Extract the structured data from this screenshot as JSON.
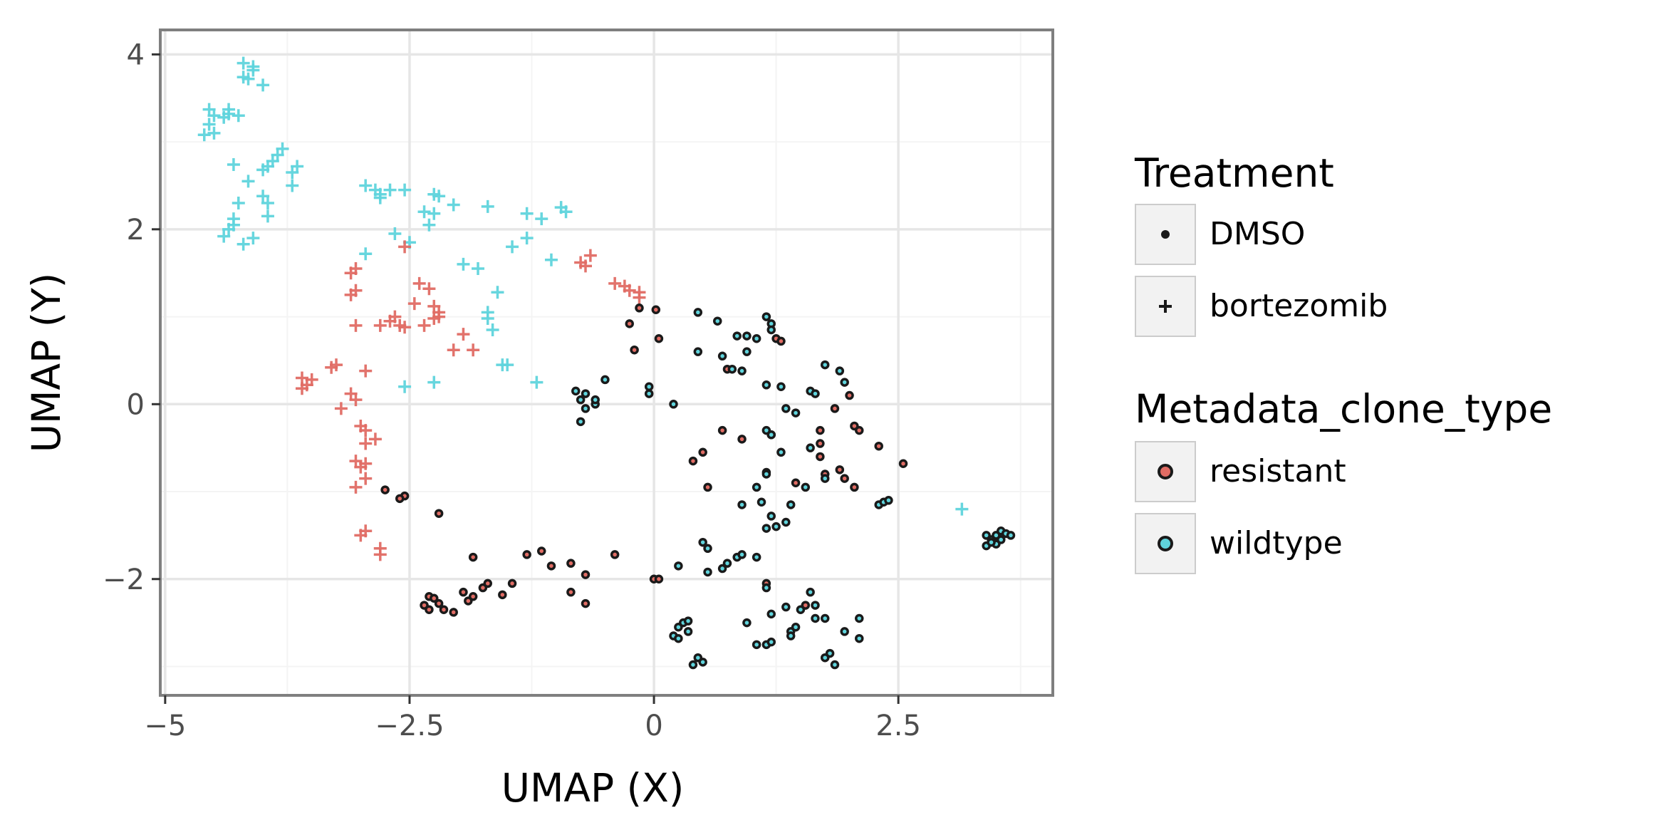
{
  "chart_data": {
    "type": "scatter",
    "xlabel": "UMAP (X)",
    "ylabel": "UMAP (Y)",
    "xlim": [
      -5.05,
      4.08
    ],
    "ylim": [
      -3.33,
      4.28
    ],
    "x_ticks": [
      {
        "value": -5,
        "label": "−5"
      },
      {
        "value": -2.5,
        "label": "−2.5"
      },
      {
        "value": 0,
        "label": "0"
      },
      {
        "value": 2.5,
        "label": "2.5"
      }
    ],
    "y_ticks": [
      {
        "value": -2,
        "label": "−2"
      },
      {
        "value": 0,
        "label": "0"
      },
      {
        "value": 2,
        "label": "2"
      },
      {
        "value": 4,
        "label": "4"
      }
    ],
    "grid": true,
    "colors": {
      "resistant": "#e06c64",
      "wildtype": "#5fd4dc",
      "outline": "#1a1a1a"
    },
    "legend": {
      "placement": "right",
      "groups": [
        {
          "title": "Treatment",
          "items": [
            {
              "label": "DMSO",
              "shape": "dot"
            },
            {
              "label": "bortezomib",
              "shape": "plus"
            }
          ]
        },
        {
          "title": "Metadata_clone_type",
          "items": [
            {
              "label": "resistant",
              "color": "#e06c64"
            },
            {
              "label": "wildtype",
              "color": "#5fd4dc"
            }
          ]
        }
      ]
    },
    "series": [
      {
        "treatment": "bortezomib",
        "clone": "wildtype",
        "points": [
          [
            -4.2,
            3.9
          ],
          [
            -4.1,
            3.82
          ],
          [
            -4.2,
            3.74
          ],
          [
            -4.1,
            3.86
          ],
          [
            -4.0,
            3.65
          ],
          [
            -4.15,
            3.72
          ],
          [
            -4.55,
            3.37
          ],
          [
            -4.5,
            3.3
          ],
          [
            -4.35,
            3.37
          ],
          [
            -4.25,
            3.3
          ],
          [
            -4.4,
            3.28
          ],
          [
            -4.55,
            3.2
          ],
          [
            -4.6,
            3.08
          ],
          [
            -4.5,
            3.1
          ],
          [
            -4.35,
            3.32
          ],
          [
            -3.8,
            2.92
          ],
          [
            -3.85,
            2.85
          ],
          [
            -3.9,
            2.78
          ],
          [
            -3.95,
            2.72
          ],
          [
            -4.0,
            2.68
          ],
          [
            -3.65,
            2.72
          ],
          [
            -3.7,
            2.65
          ],
          [
            -3.7,
            2.5
          ],
          [
            -4.3,
            2.74
          ],
          [
            -4.15,
            2.55
          ],
          [
            -4.25,
            2.3
          ],
          [
            -4.0,
            2.38
          ],
          [
            -3.95,
            2.3
          ],
          [
            -3.95,
            2.15
          ],
          [
            -4.3,
            2.05
          ],
          [
            -4.35,
            2.0
          ],
          [
            -4.3,
            2.12
          ],
          [
            -4.4,
            1.92
          ],
          [
            -4.1,
            1.9
          ],
          [
            -4.2,
            1.83
          ],
          [
            -2.95,
            2.5
          ],
          [
            -2.85,
            2.45
          ],
          [
            -2.8,
            2.4
          ],
          [
            -2.8,
            2.36
          ],
          [
            -2.7,
            2.45
          ],
          [
            -2.55,
            2.45
          ],
          [
            -2.35,
            2.2
          ],
          [
            -2.25,
            2.18
          ],
          [
            -2.3,
            2.05
          ],
          [
            -2.2,
            2.38
          ],
          [
            -2.25,
            2.4
          ],
          [
            -2.05,
            2.28
          ],
          [
            -1.7,
            2.26
          ],
          [
            -2.65,
            1.95
          ],
          [
            -2.5,
            1.85
          ],
          [
            -2.95,
            1.72
          ],
          [
            -1.3,
            2.18
          ],
          [
            -1.15,
            2.12
          ],
          [
            -0.95,
            2.25
          ],
          [
            -0.9,
            2.2
          ],
          [
            -1.05,
            1.65
          ],
          [
            -1.3,
            1.9
          ],
          [
            -1.45,
            1.8
          ],
          [
            -1.95,
            1.6
          ],
          [
            -1.8,
            1.55
          ],
          [
            -1.6,
            1.28
          ],
          [
            -1.7,
            1.05
          ],
          [
            -1.7,
            0.98
          ],
          [
            -1.65,
            0.85
          ],
          [
            -1.55,
            0.45
          ],
          [
            -1.5,
            0.45
          ],
          [
            -2.55,
            0.2
          ],
          [
            -2.25,
            0.25
          ],
          [
            -1.2,
            0.25
          ],
          [
            3.15,
            -1.2
          ]
        ]
      },
      {
        "treatment": "bortezomib",
        "clone": "resistant",
        "points": [
          [
            -2.55,
            1.8
          ],
          [
            -3.05,
            1.55
          ],
          [
            -3.1,
            1.5
          ],
          [
            -3.05,
            1.3
          ],
          [
            -3.1,
            1.25
          ],
          [
            -2.4,
            1.38
          ],
          [
            -2.3,
            1.32
          ],
          [
            -2.45,
            1.15
          ],
          [
            -2.65,
            1.0
          ],
          [
            -2.7,
            0.95
          ],
          [
            -2.6,
            0.9
          ],
          [
            -2.8,
            0.9
          ],
          [
            -2.55,
            0.88
          ],
          [
            -2.25,
            1.12
          ],
          [
            -2.2,
            1.0
          ],
          [
            -2.25,
            0.98
          ],
          [
            -2.2,
            1.05
          ],
          [
            -2.35,
            0.9
          ],
          [
            -3.05,
            0.9
          ],
          [
            -2.05,
            0.62
          ],
          [
            -1.95,
            0.8
          ],
          [
            -1.85,
            0.62
          ],
          [
            -3.6,
            0.3
          ],
          [
            -3.55,
            0.22
          ],
          [
            -3.5,
            0.28
          ],
          [
            -3.6,
            0.18
          ],
          [
            -3.3,
            0.42
          ],
          [
            -3.25,
            0.45
          ],
          [
            -2.95,
            0.38
          ],
          [
            -3.1,
            0.12
          ],
          [
            -3.05,
            0.05
          ],
          [
            -3.2,
            -0.05
          ],
          [
            -3.0,
            -0.25
          ],
          [
            -2.95,
            -0.3
          ],
          [
            -2.95,
            -0.45
          ],
          [
            -2.85,
            -0.4
          ],
          [
            -3.05,
            -0.65
          ],
          [
            -3.0,
            -0.72
          ],
          [
            -2.95,
            -0.68
          ],
          [
            -3.05,
            -0.95
          ],
          [
            -2.95,
            -0.85
          ],
          [
            -2.95,
            -1.45
          ],
          [
            -3.0,
            -1.5
          ],
          [
            -2.8,
            -1.65
          ],
          [
            -2.8,
            -1.72
          ],
          [
            -0.75,
            1.62
          ],
          [
            -0.7,
            1.58
          ],
          [
            -0.65,
            1.7
          ],
          [
            -0.4,
            1.38
          ],
          [
            -0.3,
            1.35
          ],
          [
            -0.25,
            1.3
          ],
          [
            -0.15,
            1.28
          ],
          [
            -0.15,
            1.22
          ]
        ]
      },
      {
        "treatment": "DMSO",
        "clone": "resistant",
        "points": [
          [
            -0.15,
            1.1
          ],
          [
            0.02,
            1.08
          ],
          [
            -0.25,
            0.92
          ],
          [
            0.05,
            0.75
          ],
          [
            -0.2,
            0.62
          ],
          [
            -2.75,
            -0.98
          ],
          [
            -2.55,
            -1.05
          ],
          [
            -2.6,
            -1.08
          ],
          [
            -2.2,
            -1.25
          ],
          [
            -2.3,
            -2.2
          ],
          [
            -2.25,
            -2.22
          ],
          [
            -2.35,
            -2.3
          ],
          [
            -2.2,
            -2.28
          ],
          [
            -2.3,
            -2.35
          ],
          [
            -2.15,
            -2.35
          ],
          [
            -2.05,
            -2.38
          ],
          [
            -1.95,
            -2.15
          ],
          [
            -1.9,
            -2.25
          ],
          [
            -1.85,
            -2.2
          ],
          [
            -1.85,
            -1.75
          ],
          [
            -1.75,
            -2.1
          ],
          [
            -1.7,
            -2.05
          ],
          [
            -1.55,
            -2.18
          ],
          [
            -1.45,
            -2.05
          ],
          [
            -1.3,
            -1.72
          ],
          [
            -1.15,
            -1.68
          ],
          [
            -1.05,
            -1.85
          ],
          [
            -0.85,
            -1.82
          ],
          [
            -0.85,
            -2.15
          ],
          [
            -0.7,
            -1.95
          ],
          [
            -0.7,
            -2.28
          ],
          [
            -0.4,
            -1.72
          ],
          [
            0.0,
            -2.0
          ],
          [
            0.05,
            -2.0
          ],
          [
            0.4,
            -0.65
          ],
          [
            0.5,
            -0.55
          ],
          [
            0.55,
            -0.95
          ],
          [
            0.7,
            -0.3
          ],
          [
            0.9,
            -0.4
          ],
          [
            1.2,
            -0.35
          ],
          [
            1.45,
            -0.9
          ],
          [
            1.7,
            -0.3
          ],
          [
            1.7,
            -0.45
          ],
          [
            1.7,
            -0.6
          ],
          [
            1.75,
            -0.8
          ],
          [
            1.85,
            -0.05
          ],
          [
            1.9,
            -0.75
          ],
          [
            1.95,
            -0.85
          ],
          [
            2.05,
            -0.95
          ],
          [
            2.05,
            -0.25
          ],
          [
            2.1,
            -0.3
          ],
          [
            2.0,
            0.1
          ],
          [
            2.3,
            -0.48
          ],
          [
            2.55,
            -0.68
          ],
          [
            1.25,
            0.75
          ],
          [
            1.3,
            0.72
          ],
          [
            0.75,
            0.4
          ],
          [
            1.15,
            -2.05
          ],
          [
            1.55,
            -2.3
          ]
        ]
      },
      {
        "treatment": "DMSO",
        "clone": "wildtype",
        "points": [
          [
            -0.8,
            0.15
          ],
          [
            -0.7,
            0.12
          ],
          [
            -0.75,
            0.05
          ],
          [
            -0.7,
            -0.05
          ],
          [
            -0.6,
            -0.0
          ],
          [
            -0.6,
            0.05
          ],
          [
            -0.5,
            0.28
          ],
          [
            -0.75,
            -0.2
          ],
          [
            -0.05,
            0.2
          ],
          [
            -0.05,
            0.12
          ],
          [
            0.2,
            0.0
          ],
          [
            0.45,
            1.05
          ],
          [
            0.65,
            0.95
          ],
          [
            0.85,
            0.78
          ],
          [
            0.95,
            0.78
          ],
          [
            1.05,
            0.75
          ],
          [
            1.15,
            1.0
          ],
          [
            1.2,
            0.92
          ],
          [
            1.2,
            0.85
          ],
          [
            0.45,
            0.6
          ],
          [
            0.7,
            0.55
          ],
          [
            0.95,
            0.6
          ],
          [
            0.8,
            0.4
          ],
          [
            0.9,
            0.38
          ],
          [
            1.15,
            0.22
          ],
          [
            1.3,
            0.2
          ],
          [
            1.35,
            -0.05
          ],
          [
            1.45,
            -0.1
          ],
          [
            1.6,
            0.15
          ],
          [
            1.65,
            0.12
          ],
          [
            1.75,
            0.45
          ],
          [
            1.9,
            0.38
          ],
          [
            1.95,
            0.25
          ],
          [
            1.15,
            -0.3
          ],
          [
            1.2,
            -0.35
          ],
          [
            1.15,
            -0.78
          ],
          [
            1.15,
            -0.8
          ],
          [
            1.3,
            -0.55
          ],
          [
            1.6,
            -0.5
          ],
          [
            1.75,
            -0.85
          ],
          [
            1.55,
            -0.95
          ],
          [
            0.9,
            -1.15
          ],
          [
            1.1,
            -1.12
          ],
          [
            1.05,
            -0.95
          ],
          [
            1.2,
            -1.28
          ],
          [
            1.25,
            -1.4
          ],
          [
            1.15,
            -1.42
          ],
          [
            1.4,
            -1.15
          ],
          [
            1.35,
            -1.35
          ],
          [
            2.3,
            -1.15
          ],
          [
            2.35,
            -1.12
          ],
          [
            2.4,
            -1.1
          ],
          [
            0.5,
            -1.58
          ],
          [
            0.55,
            -1.65
          ],
          [
            0.55,
            -1.92
          ],
          [
            0.75,
            -1.82
          ],
          [
            0.7,
            -1.88
          ],
          [
            0.85,
            -1.75
          ],
          [
            0.9,
            -1.72
          ],
          [
            0.25,
            -1.85
          ],
          [
            1.05,
            -1.75
          ],
          [
            1.15,
            -2.1
          ],
          [
            0.25,
            -2.55
          ],
          [
            0.3,
            -2.5
          ],
          [
            0.35,
            -2.48
          ],
          [
            0.35,
            -2.6
          ],
          [
            0.2,
            -2.65
          ],
          [
            0.25,
            -2.68
          ],
          [
            0.45,
            -2.9
          ],
          [
            0.5,
            -2.95
          ],
          [
            0.4,
            -2.98
          ],
          [
            0.95,
            -2.5
          ],
          [
            1.05,
            -2.75
          ],
          [
            1.15,
            -2.75
          ],
          [
            1.2,
            -2.72
          ],
          [
            1.2,
            -2.4
          ],
          [
            1.4,
            -2.6
          ],
          [
            1.4,
            -2.65
          ],
          [
            1.45,
            -2.55
          ],
          [
            1.5,
            -2.35
          ],
          [
            1.6,
            -2.15
          ],
          [
            1.65,
            -2.3
          ],
          [
            1.65,
            -2.45
          ],
          [
            1.75,
            -2.45
          ],
          [
            1.75,
            -2.9
          ],
          [
            1.8,
            -2.85
          ],
          [
            1.85,
            -2.98
          ],
          [
            1.95,
            -2.6
          ],
          [
            2.1,
            -2.45
          ],
          [
            2.1,
            -2.68
          ],
          [
            1.35,
            -2.32
          ],
          [
            3.4,
            -1.5
          ],
          [
            3.45,
            -1.55
          ],
          [
            3.5,
            -1.5
          ],
          [
            3.55,
            -1.45
          ],
          [
            3.6,
            -1.48
          ],
          [
            3.65,
            -1.5
          ],
          [
            3.5,
            -1.6
          ],
          [
            3.55,
            -1.55
          ],
          [
            3.4,
            -1.62
          ],
          [
            3.45,
            -1.58
          ]
        ]
      }
    ]
  }
}
